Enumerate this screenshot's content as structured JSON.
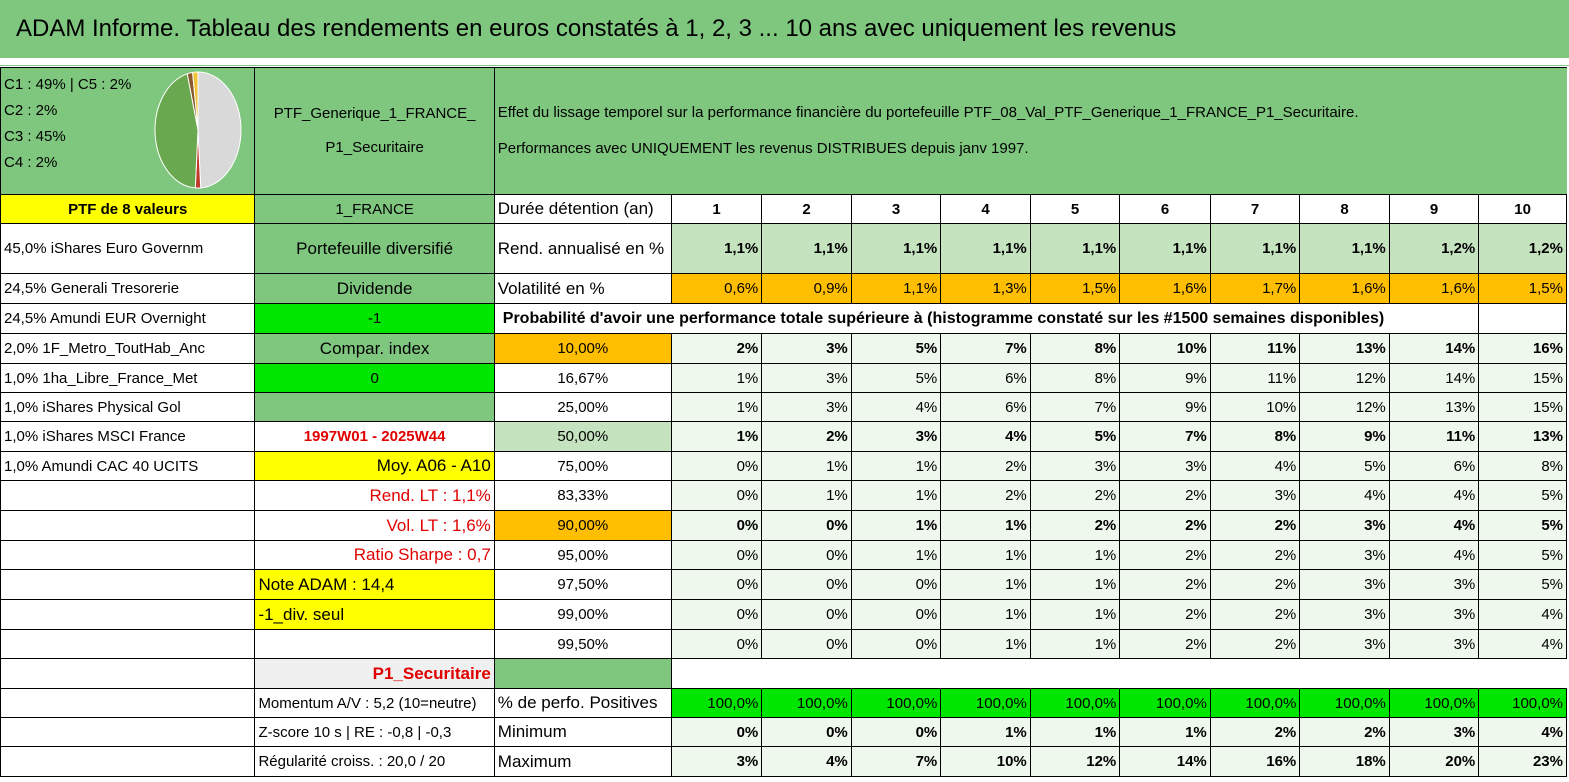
{
  "title": "ADAM Informe. Tableau des rendements en euros constatés à 1, 2, 3 ... 10 ans avec uniquement les revenus",
  "legend": [
    "C1 : 49% | C5 : 2%",
    "C2 : 2%",
    "C3 : 45%",
    "C4 : 2%"
  ],
  "pie": {
    "slices": [
      {
        "label": "C1",
        "value": 49,
        "color": "#d9d9d9"
      },
      {
        "label": "C2",
        "value": 2,
        "color": "#c0392b"
      },
      {
        "label": "C3",
        "value": 45,
        "color": "#6aa84f"
      },
      {
        "label": "C4",
        "value": 2,
        "color": "#8b5a2b"
      },
      {
        "label": "C5",
        "value": 2,
        "color": "#f1c232"
      }
    ]
  },
  "portfolio": {
    "name_line1": "PTF_Generique_1_FRANCE_",
    "name_line2": "P1_Securitaire",
    "description_line1": "Effet du lissage temporel sur la performance financière du portefeuille PTF_08_Val_PTF_Generique_1_FRANCE_P1_Securitaire.",
    "description_line2": "Performances avec UNIQUEMENT les revenus DISTRIBUES depuis janv 1997.",
    "count_label": "PTF de 8 valeurs",
    "country": "1_FRANCE"
  },
  "holdings": [
    "45,0% iShares Euro Governm",
    "24,5% Generali Tresorerie",
    "24,5% Amundi EUR Overnight",
    "2,0% 1F_Metro_ToutHab_Anc",
    "1,0% 1ha_Libre_France_Met",
    "1,0% iShares Physical Gol",
    "1,0% iShares MSCI France",
    "1,0% Amundi CAC 40 UCITS"
  ],
  "side": {
    "diversified": "Portefeuille diversifié",
    "dividende": "Dividende",
    "minus_one": "-1",
    "compar_index": "Compar. index",
    "zero": "0",
    "period": "1997W01 - 2025W44",
    "moy": "Moy. A06 - A10",
    "rend_lt": "Rend. LT : 1,1%",
    "vol_lt": "Vol. LT : 1,6%",
    "sharpe": "Ratio Sharpe : 0,7",
    "note": "Note ADAM : 14,4",
    "div_seul": "-1_div. seul",
    "p1": "P1_Securitaire",
    "momentum": "Momentum A/V : 5,2 (10=neutre)",
    "zscore": "Z-score 10 s | RE : -0,8 | -0,3",
    "regularite": "Régularité croiss. : 20,0 / 20"
  },
  "table": {
    "duration_label": "Durée détention (an)",
    "years": [
      "1",
      "2",
      "3",
      "4",
      "5",
      "6",
      "7",
      "8",
      "9",
      "10"
    ],
    "rend_label": "Rend. annualisé en %",
    "rend": [
      "1,1%",
      "1,1%",
      "1,1%",
      "1,1%",
      "1,1%",
      "1,1%",
      "1,1%",
      "1,1%",
      "1,2%",
      "1,2%"
    ],
    "vol_label": "Volatilité en %",
    "vol": [
      "0,6%",
      "0,9%",
      "1,1%",
      "1,3%",
      "1,5%",
      "1,6%",
      "1,7%",
      "1,6%",
      "1,6%",
      "1,5%"
    ],
    "prob_label": "Probabilité d'avoir une performance totale supérieure à (histogramme constaté sur les #1500 semaines disponibles)",
    "quantiles": [
      {
        "q": "10,00%",
        "v": [
          "2%",
          "3%",
          "5%",
          "7%",
          "8%",
          "10%",
          "11%",
          "13%",
          "14%",
          "16%"
        ]
      },
      {
        "q": "16,67%",
        "v": [
          "1%",
          "3%",
          "5%",
          "6%",
          "8%",
          "9%",
          "11%",
          "12%",
          "14%",
          "15%"
        ]
      },
      {
        "q": "25,00%",
        "v": [
          "1%",
          "3%",
          "4%",
          "6%",
          "7%",
          "9%",
          "10%",
          "12%",
          "13%",
          "15%"
        ]
      },
      {
        "q": "50,00%",
        "v": [
          "1%",
          "2%",
          "3%",
          "4%",
          "5%",
          "7%",
          "8%",
          "9%",
          "11%",
          "13%"
        ]
      },
      {
        "q": "75,00%",
        "v": [
          "0%",
          "1%",
          "1%",
          "2%",
          "3%",
          "3%",
          "4%",
          "5%",
          "6%",
          "8%"
        ]
      },
      {
        "q": "83,33%",
        "v": [
          "0%",
          "1%",
          "1%",
          "2%",
          "2%",
          "2%",
          "3%",
          "4%",
          "4%",
          "5%"
        ]
      },
      {
        "q": "90,00%",
        "v": [
          "0%",
          "0%",
          "1%",
          "1%",
          "2%",
          "2%",
          "2%",
          "3%",
          "4%",
          "5%"
        ]
      },
      {
        "q": "95,00%",
        "v": [
          "0%",
          "0%",
          "1%",
          "1%",
          "1%",
          "2%",
          "2%",
          "3%",
          "4%",
          "5%"
        ]
      },
      {
        "q": "97,50%",
        "v": [
          "0%",
          "0%",
          "0%",
          "1%",
          "1%",
          "2%",
          "2%",
          "3%",
          "3%",
          "5%"
        ]
      },
      {
        "q": "99,00%",
        "v": [
          "0%",
          "0%",
          "0%",
          "1%",
          "1%",
          "2%",
          "2%",
          "3%",
          "3%",
          "4%"
        ]
      },
      {
        "q": "99,50%",
        "v": [
          "0%",
          "0%",
          "0%",
          "1%",
          "1%",
          "2%",
          "2%",
          "3%",
          "3%",
          "4%"
        ]
      }
    ],
    "pos_label": "% de perfo. Positives",
    "pos": [
      "100,0%",
      "100,0%",
      "100,0%",
      "100,0%",
      "100,0%",
      "100,0%",
      "100,0%",
      "100,0%",
      "100,0%",
      "100,0%"
    ],
    "min_label": "Minimum",
    "min": [
      "0%",
      "0%",
      "0%",
      "1%",
      "1%",
      "1%",
      "2%",
      "2%",
      "3%",
      "4%"
    ],
    "max_label": "Maximum",
    "max": [
      "3%",
      "4%",
      "7%",
      "10%",
      "12%",
      "14%",
      "16%",
      "18%",
      "20%",
      "23%"
    ]
  }
}
